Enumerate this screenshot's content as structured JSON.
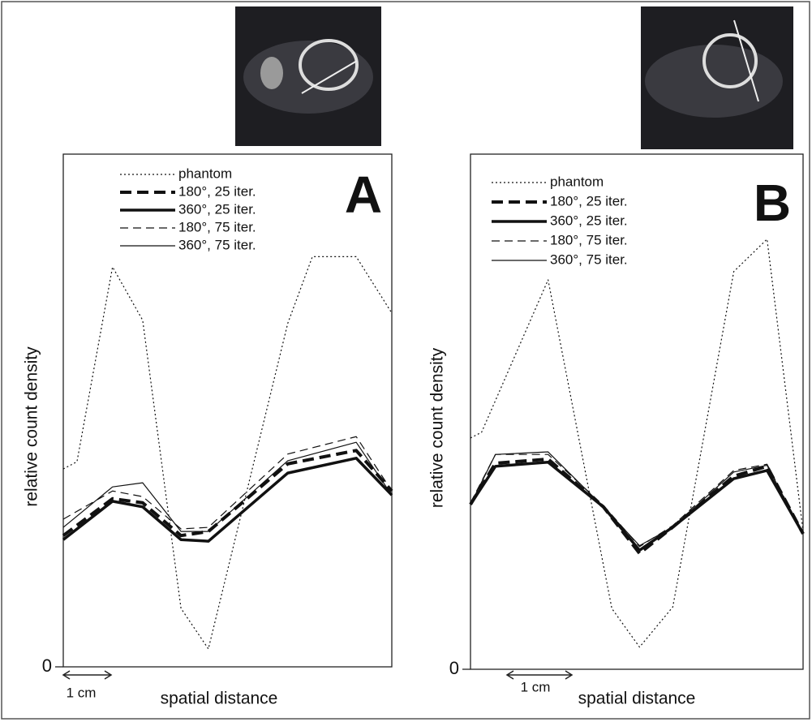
{
  "chart_data": [
    {
      "type": "line",
      "panel": "A",
      "xlabel": "spatial distance",
      "ylabel": "relative count density",
      "scalebar": "1 cm",
      "xlim": [
        0,
        12
      ],
      "ylim": [
        0,
        100
      ],
      "yticks": [
        0
      ],
      "series": [
        {
          "name": "phantom",
          "color": "#111111",
          "x": [
            0,
            0.5,
            1.8,
            2.9,
            4.3,
            5.3,
            8.2,
            9.1,
            10.7,
            12
          ],
          "values": [
            38.6,
            40,
            78,
            67.6,
            11.4,
            3.5,
            67,
            80,
            80,
            69
          ]
        },
        {
          "name": "180°, 25 iter.",
          "color": "#111111",
          "x": [
            0,
            1.8,
            2.9,
            4.3,
            5.3,
            8.2,
            10.7,
            12
          ],
          "values": [
            25.6,
            32.8,
            32,
            25.6,
            26.4,
            39.6,
            42.2,
            34.3
          ]
        },
        {
          "name": "360°, 25 iter.",
          "color": "#111111",
          "x": [
            0,
            1.8,
            2.9,
            4.3,
            5.3,
            8.2,
            10.7,
            12
          ],
          "values": [
            24.8,
            32.3,
            31.2,
            24.8,
            24.5,
            37.8,
            40.7,
            33.5
          ]
        },
        {
          "name": "180°, 75 iter.",
          "color": "#111111",
          "x": [
            0,
            1.8,
            2.9,
            4.3,
            5.3,
            8.2,
            10.7,
            12
          ],
          "values": [
            28.8,
            34.3,
            33.2,
            26.9,
            27.2,
            41.5,
            44.9,
            34.3
          ]
        },
        {
          "name": "360°, 75 iter.",
          "color": "#111111",
          "x": [
            0,
            1.8,
            2.9,
            4.3,
            5.3,
            8.2,
            10.7,
            12
          ],
          "values": [
            27.2,
            35.1,
            35.9,
            26.4,
            26.4,
            40.2,
            43.8,
            33.5
          ]
        }
      ]
    },
    {
      "type": "line",
      "panel": "B",
      "xlabel": "spatial distance",
      "ylabel": "relative count density",
      "scalebar": "1 cm",
      "xlim": [
        0,
        12
      ],
      "ylim": [
        0,
        100
      ],
      "yticks": [
        0
      ],
      "series": [
        {
          "name": "phantom",
          "color": "#111111",
          "x": [
            0,
            0.4,
            2.8,
            5.1,
            6.1,
            7.3,
            9.5,
            10.7,
            12
          ],
          "values": [
            44.9,
            46,
            75.6,
            11.8,
            4.3,
            12.1,
            77.2,
            83.5,
            26.8
          ]
        },
        {
          "name": "180°, 25 iter.",
          "color": "#111111",
          "x": [
            0,
            0.9,
            2.8,
            4.8,
            6.1,
            7.3,
            9.5,
            10.7,
            12
          ],
          "values": [
            32,
            40,
            40.8,
            31.5,
            22.5,
            27.6,
            37.5,
            39.4,
            26.3
          ]
        },
        {
          "name": "360°, 25 iter.",
          "color": "#111111",
          "x": [
            0,
            0.9,
            2.8,
            4.8,
            6.1,
            7.3,
            9.5,
            10.7,
            12
          ],
          "values": [
            32,
            39.4,
            40.2,
            31.5,
            23.1,
            27.6,
            37,
            38.6,
            26.3
          ]
        },
        {
          "name": "180°, 75 iter.",
          "color": "#111111",
          "x": [
            0,
            0.9,
            2.8,
            4.8,
            6.1,
            7.3,
            9.5,
            10.7,
            12
          ],
          "values": [
            32.3,
            41.7,
            41.7,
            31.8,
            23.8,
            27.9,
            38.6,
            39.8,
            26.3
          ]
        },
        {
          "name": "360°, 75 iter.",
          "color": "#111111",
          "x": [
            0,
            0.9,
            2.8,
            4.8,
            6.1,
            7.3,
            9.5,
            10.7,
            12
          ],
          "values": [
            32,
            41.7,
            42.2,
            31.5,
            24,
            27.6,
            38.3,
            39.6,
            26.3
          ]
        }
      ]
    }
  ]
}
